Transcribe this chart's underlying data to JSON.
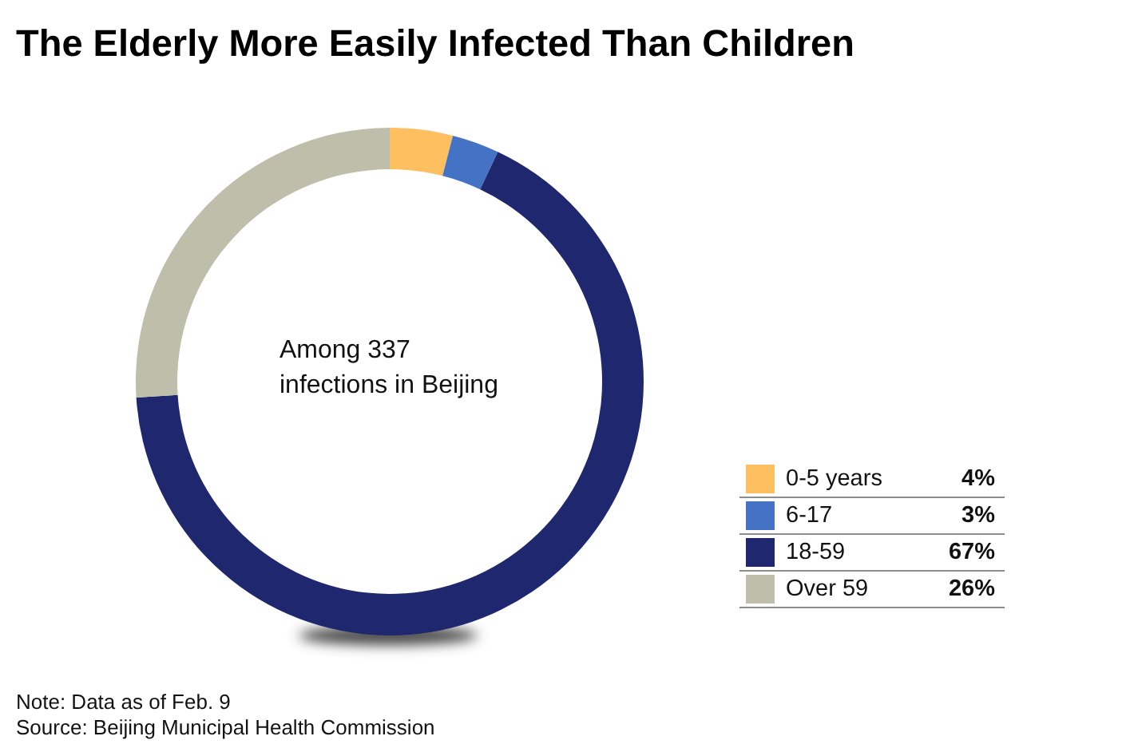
{
  "chart_data": {
    "type": "donut",
    "title": "The Elderly More Easily Infected Than Children",
    "categories": [
      "0-5 years",
      "6-17",
      "18-59",
      "Over 59"
    ],
    "values": [
      4,
      3,
      67,
      26
    ],
    "colors": [
      "#fdbf5f",
      "#4473c5",
      "#1f276e",
      "#bfbeaa"
    ],
    "value_labels": [
      "4%",
      "3%",
      "67%",
      "26%"
    ],
    "legend": "bottom right",
    "annotations": [
      "Among 337 infections in Beijing",
      "Note: Data as of Feb. 9",
      "Source: Beijing Municipal Health Commission"
    ]
  }
}
